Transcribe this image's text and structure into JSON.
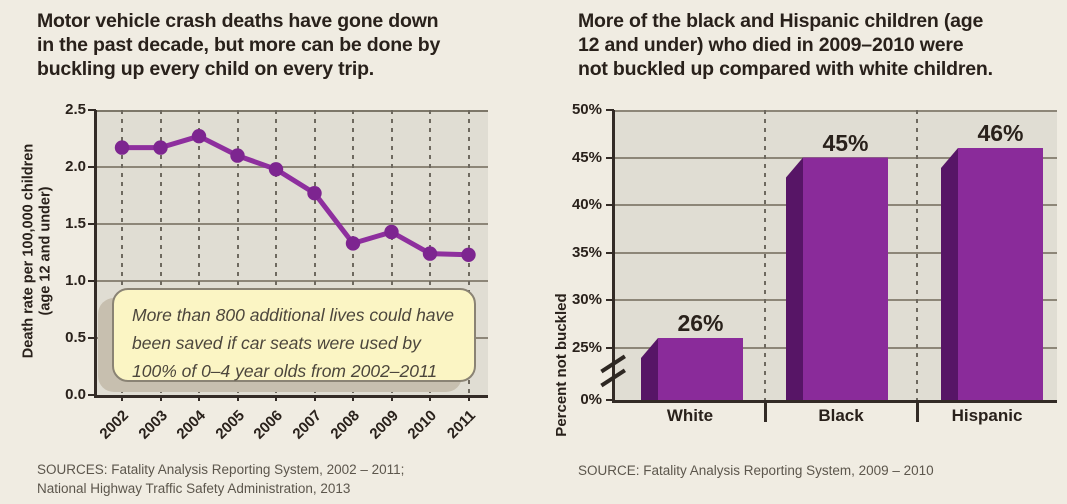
{
  "colors": {
    "background": "#f0ece2",
    "plot_background": "#e0ddd3",
    "line_purple": "#8e2f9e",
    "marker_purple": "#7d2590",
    "bar_front": "#8a2b9a",
    "bar_side": "#571566",
    "axis": "#332b26",
    "grid": "#8d8678",
    "callout_bg": "#fbf5c4",
    "callout_border": "#8a8374",
    "source_text": "#5c564c"
  },
  "chart_data": [
    {
      "type": "line",
      "title": "Motor vehicle crash deaths have gone down in the past decade, but more can be done by buckling up every child on every trip.",
      "title_lines": [
        "Motor vehicle crash deaths have gone down",
        "in the past decade, but more can be done by",
        "buckling up every child on every trip."
      ],
      "x": [
        2002,
        2003,
        2004,
        2005,
        2006,
        2007,
        2008,
        2009,
        2010,
        2011
      ],
      "xticks": [
        "2002",
        "2003",
        "2004",
        "2005",
        "2006",
        "2007",
        "2008",
        "2009",
        "2010",
        "2011"
      ],
      "values": [
        2.17,
        2.17,
        2.27,
        2.1,
        1.98,
        1.77,
        1.33,
        1.43,
        1.24,
        1.23
      ],
      "ylabel": "Death rate per 100,000 children (age 12 and under)",
      "ylabel_lines": [
        "Death rate per 100,000 children",
        "(age 12 and under)"
      ],
      "ylim": [
        0,
        2.5
      ],
      "yticks": [
        "2.5",
        "2.0",
        "1.5",
        "1.0",
        "0.5",
        "0.0"
      ],
      "ytick_values": [
        2.5,
        2.0,
        1.5,
        1.0,
        0.5,
        0.0
      ],
      "grid": "horizontal solid gray, vertical dashed per year",
      "annotation": "More than 800 additional lives could have been saved if car seats were used by 100% of 0–4 year olds from 2002–2011",
      "annotation_lines": [
        "More than 800 additional lives could have",
        "been saved if car seats were used by",
        "100% of 0–4 year olds from 2002–2011"
      ],
      "sources_lines": [
        "SOURCES: Fatality Analysis Reporting System, 2002 – 2011;",
        "National Highway Traffic Safety Administration, 2013"
      ]
    },
    {
      "type": "bar",
      "title": "More of the black and Hispanic children (age 12 and under) who died in 2009–2010 were not buckled up compared with white children.",
      "title_lines": [
        "More of the black and Hispanic children (age",
        "12 and under) who died in 2009–2010 were",
        "not buckled up compared with white children."
      ],
      "categories": [
        "White",
        "Black",
        "Hispanic"
      ],
      "values": [
        26,
        45,
        46
      ],
      "value_labels": [
        "26%",
        "45%",
        "46%"
      ],
      "ylabel": "Percent not buckled",
      "yticks": [
        "50%",
        "45%",
        "40%",
        "35%",
        "30%",
        "25%",
        "0%"
      ],
      "ytick_values": [
        50,
        45,
        40,
        35,
        30,
        25,
        0
      ],
      "axis_break": "broken axis between 0% and 25%",
      "grid": "horizontal solid gray every 5%, dashed vertical category separators",
      "source": "SOURCE: Fatality Analysis Reporting System, 2009 – 2010"
    }
  ]
}
